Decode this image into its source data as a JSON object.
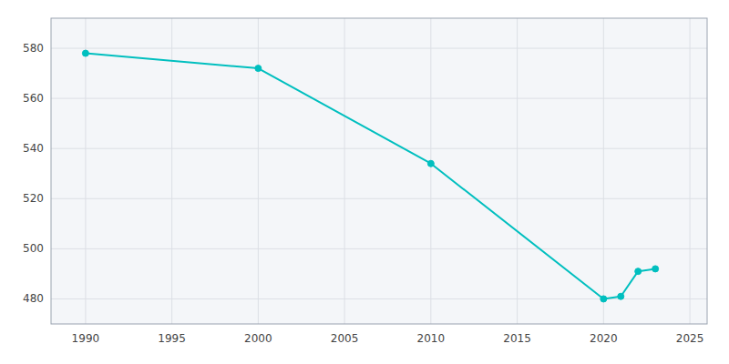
{
  "chart_data": {
    "type": "line",
    "x": [
      1990,
      2000,
      2010,
      2020,
      2021,
      2022,
      2023
    ],
    "values": [
      578,
      572,
      534,
      480,
      481,
      491,
      492
    ],
    "color": "#00BFBF",
    "marker": "circle",
    "xlim": [
      1988,
      2026
    ],
    "ylim": [
      470,
      592
    ],
    "xticks": [
      1990,
      1995,
      2000,
      2005,
      2010,
      2015,
      2020,
      2025
    ],
    "yticks": [
      480,
      500,
      520,
      540,
      560,
      580
    ],
    "grid": true
  }
}
